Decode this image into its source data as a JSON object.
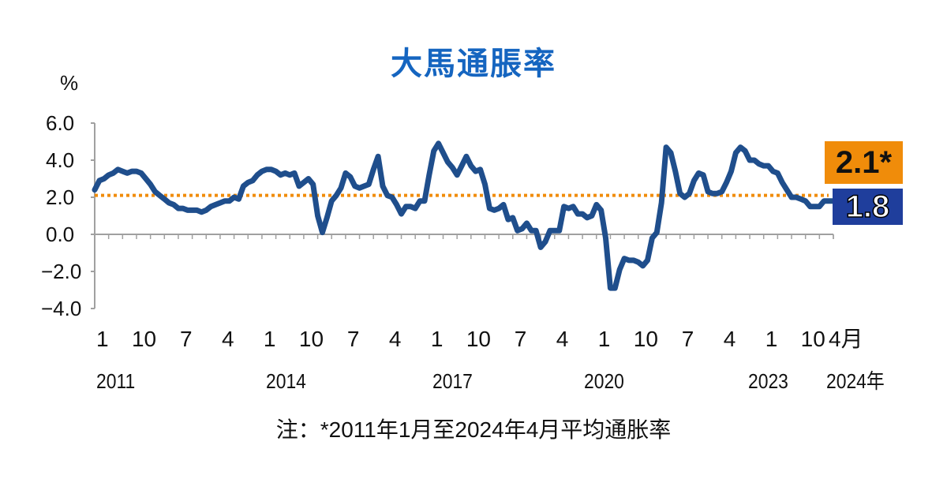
{
  "title": "大馬通脹率",
  "y_unit": "%",
  "y_ticks": [
    "6.0",
    "4.0",
    "2.0",
    "0.0",
    "−2.0",
    "−4.0"
  ],
  "x_month_labels": [
    "1",
    "10",
    "7",
    "4",
    "1",
    "10",
    "7",
    "4",
    "1",
    "10",
    "7",
    "4",
    "1",
    "10",
    "7",
    "4",
    "1",
    "10",
    "4月"
  ],
  "x_year_labels": [
    "2011",
    "2014",
    "2017",
    "2020",
    "2023",
    "2024年"
  ],
  "badges": {
    "average": "2.1*",
    "latest": "1.8"
  },
  "note": "注：*2011年1月至2024年4月平均通胀率",
  "colors": {
    "title": "#1565c0",
    "line": "#1f4e8c",
    "average_line": "#f08c0a",
    "average_badge": "#f08c0a",
    "latest_badge": "#1f3e9c",
    "axis": "#a0a0a0"
  },
  "chart_data": {
    "type": "line",
    "title": "大馬通脹率",
    "xlabel": "",
    "ylabel": "%",
    "ylim": [
      -4.0,
      6.0
    ],
    "yticks": [
      6.0,
      4.0,
      2.0,
      0.0,
      -2.0,
      -4.0
    ],
    "grid": false,
    "x_start": "2011-01",
    "x_end": "2024-04",
    "frequency": "monthly",
    "series": [
      {
        "name": "Malaysia inflation rate (%)",
        "values": [
          2.4,
          2.9,
          3.0,
          3.2,
          3.3,
          3.5,
          3.4,
          3.3,
          3.4,
          3.4,
          3.3,
          3.0,
          2.7,
          2.3,
          2.1,
          1.9,
          1.7,
          1.6,
          1.4,
          1.4,
          1.3,
          1.3,
          1.3,
          1.2,
          1.3,
          1.5,
          1.6,
          1.7,
          1.8,
          1.8,
          2.0,
          1.9,
          2.6,
          2.8,
          2.9,
          3.2,
          3.4,
          3.5,
          3.5,
          3.4,
          3.2,
          3.3,
          3.2,
          3.3,
          2.6,
          2.8,
          3.0,
          2.7,
          1.0,
          0.1,
          0.9,
          1.8,
          2.1,
          2.5,
          3.3,
          3.1,
          2.6,
          2.5,
          2.6,
          2.7,
          3.5,
          4.2,
          2.6,
          2.1,
          2.0,
          1.6,
          1.1,
          1.5,
          1.5,
          1.4,
          1.8,
          1.8,
          3.2,
          4.5,
          4.9,
          4.4,
          3.9,
          3.6,
          3.2,
          3.7,
          4.2,
          3.7,
          3.4,
          3.5,
          2.7,
          1.4,
          1.3,
          1.4,
          1.6,
          0.8,
          0.9,
          0.2,
          0.3,
          0.6,
          0.2,
          0.2,
          -0.7,
          -0.4,
          0.2,
          0.2,
          0.2,
          1.5,
          1.4,
          1.5,
          1.1,
          1.1,
          0.9,
          1.0,
          1.6,
          1.3,
          -0.2,
          -2.9,
          -2.9,
          -1.9,
          -1.3,
          -1.4,
          -1.4,
          -1.5,
          -1.7,
          -1.4,
          -0.2,
          0.1,
          1.7,
          4.7,
          4.4,
          3.4,
          2.2,
          2.0,
          2.2,
          2.9,
          3.3,
          3.2,
          2.3,
          2.2,
          2.2,
          2.3,
          2.8,
          3.4,
          4.4,
          4.7,
          4.5,
          4.0,
          4.0,
          3.8,
          3.7,
          3.7,
          3.4,
          3.3,
          2.8,
          2.4,
          2.0,
          2.0,
          1.9,
          1.8,
          1.5,
          1.5,
          1.5,
          1.8,
          1.8,
          1.8
        ]
      },
      {
        "name": "Average Jan 2011 – Apr 2024",
        "constant": 2.1,
        "style": "dotted"
      }
    ],
    "annotations": [
      {
        "text": "2.1*",
        "meaning": "average inflation Jan 2011–Apr 2024"
      },
      {
        "text": "1.8",
        "meaning": "latest value, April 2024"
      }
    ],
    "x_tick_labels_month": [
      "1",
      "10",
      "7",
      "4",
      "1",
      "10",
      "7",
      "4",
      "1",
      "10",
      "7",
      "4",
      "1",
      "10",
      "7",
      "4",
      "1",
      "10",
      "4月"
    ],
    "x_tick_labels_year": [
      "2011",
      "2014",
      "2017",
      "2020",
      "2023",
      "2024年"
    ],
    "note": "注：*2011年1月至2024年4月平均通胀率"
  }
}
